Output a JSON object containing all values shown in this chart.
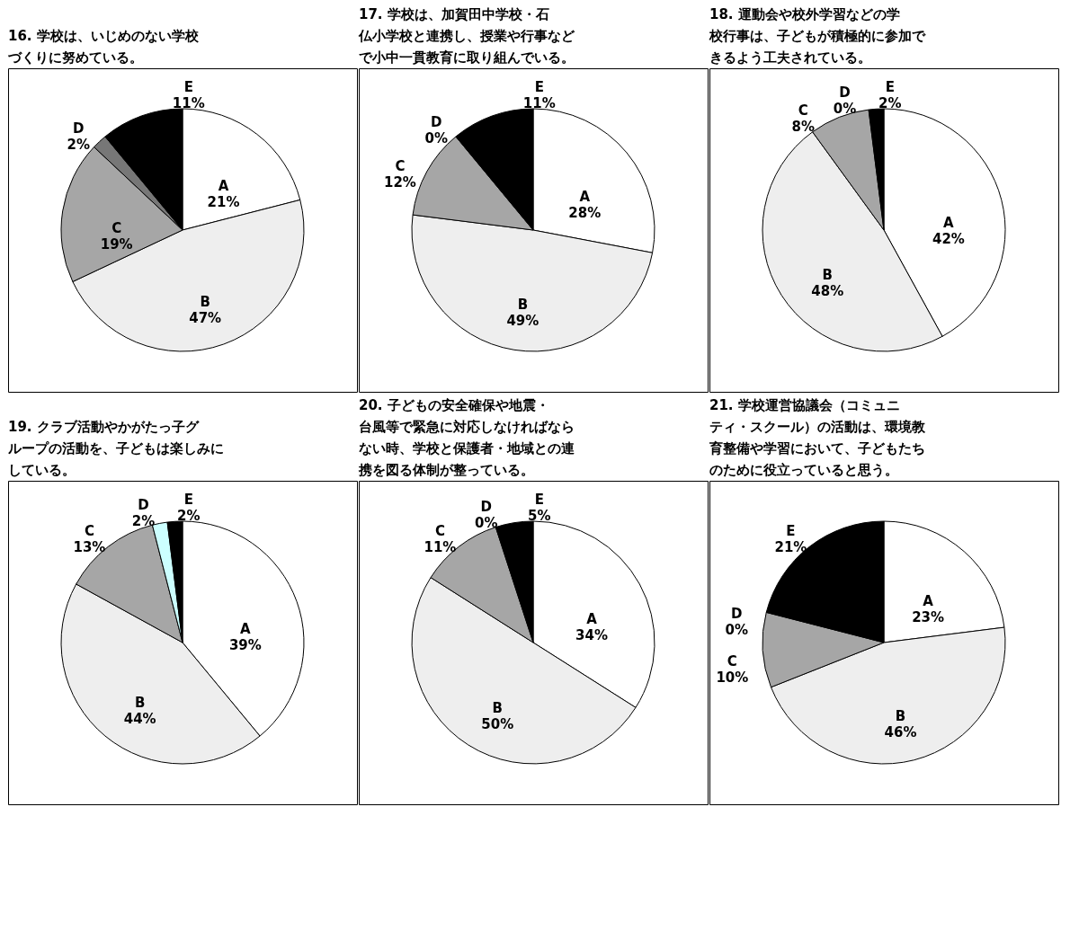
{
  "chart_data": [
    {
      "type": "pie",
      "title": "16. 学校は、いじめのない学校づくりに努めている。",
      "categories": [
        "A",
        "B",
        "C",
        "D",
        "E"
      ],
      "values": [
        21,
        47,
        19,
        2,
        11
      ],
      "value_labels": [
        "21%",
        "47%",
        "19%",
        "2%",
        "11%"
      ],
      "colors": [
        "#ffffff",
        "#eeeeee",
        "#a6a6a6",
        "#777777",
        "#000000"
      ]
    },
    {
      "type": "pie",
      "title": "17. 学校は、加賀田中学校・石仏小学校と連携し、授業や行事などで小中一貫教育に取り組んでいる。",
      "categories": [
        "A",
        "B",
        "C",
        "D",
        "E"
      ],
      "values": [
        28,
        49,
        12,
        0,
        11
      ],
      "value_labels": [
        "28%",
        "49%",
        "12%",
        "0%",
        "11%"
      ],
      "colors": [
        "#ffffff",
        "#eeeeee",
        "#a6a6a6",
        "#777777",
        "#000000"
      ]
    },
    {
      "type": "pie",
      "title": "18. 運動会や校外学習などの学校行事は、子どもが積極的に参加できるよう工夫されている。",
      "categories": [
        "A",
        "B",
        "C",
        "D",
        "E"
      ],
      "values": [
        42,
        48,
        8,
        0,
        2
      ],
      "value_labels": [
        "42%",
        "48%",
        "8%",
        "0%",
        "2%"
      ],
      "colors": [
        "#ffffff",
        "#eeeeee",
        "#a6a6a6",
        "#777777",
        "#000000"
      ]
    },
    {
      "type": "pie",
      "title": "19. クラブ活動やかがたっ子グループの活動を、子どもは楽しみにしている。",
      "categories": [
        "A",
        "B",
        "C",
        "D",
        "E"
      ],
      "values": [
        39,
        44,
        13,
        2,
        2
      ],
      "value_labels": [
        "39%",
        "44%",
        "13%",
        "2%",
        "2%"
      ],
      "colors": [
        "#ffffff",
        "#eeeeee",
        "#a6a6a6",
        "#ccffff",
        "#000000"
      ]
    },
    {
      "type": "pie",
      "title": "20. 子どもの安全確保や地震・台風等で緊急に対応しなければならない時、学校と保護者・地域との連携を図る体制が整っている。",
      "categories": [
        "A",
        "B",
        "C",
        "D",
        "E"
      ],
      "values": [
        34,
        50,
        11,
        0,
        5
      ],
      "value_labels": [
        "34%",
        "50%",
        "11%",
        "0%",
        "5%"
      ],
      "colors": [
        "#ffffff",
        "#eeeeee",
        "#a6a6a6",
        "#777777",
        "#000000"
      ]
    },
    {
      "type": "pie",
      "title": "21. 学校運営協議会（コミュニティ・スクール）の活動は、環境教育整備や学習において、子どもたちのために役立っていると思う。",
      "categories": [
        "A",
        "B",
        "C",
        "D",
        "E"
      ],
      "values": [
        23,
        46,
        10,
        0,
        21
      ],
      "value_labels": [
        "23%",
        "46%",
        "10%",
        "0%",
        "21%"
      ],
      "colors": [
        "#ffffff",
        "#eeeeee",
        "#a6a6a6",
        "#777777",
        "#000000"
      ]
    }
  ]
}
